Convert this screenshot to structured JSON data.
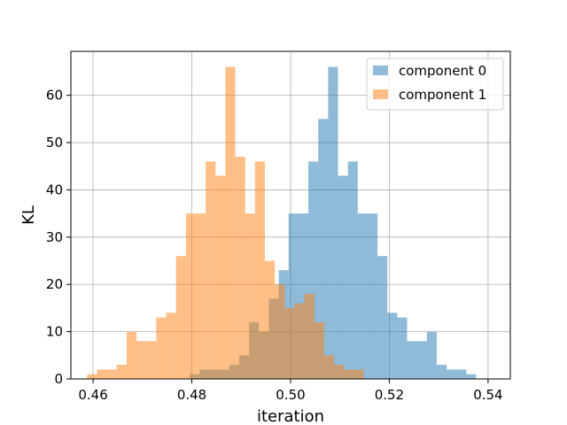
{
  "chart_data": {
    "type": "histogram",
    "xlabel": "iteration",
    "ylabel": "KL",
    "xlim": [
      0.4555,
      0.5445
    ],
    "ylim": [
      0,
      69.3
    ],
    "x_ticks": [
      "0.46",
      "0.48",
      "0.50",
      "0.52",
      "0.54"
    ],
    "y_ticks": [
      "0",
      "10",
      "20",
      "30",
      "40",
      "50",
      "60"
    ],
    "grid": true,
    "legend_position": "top-right",
    "bin_width": 0.002,
    "series": [
      {
        "name": "component 0",
        "color": "#1f77b4",
        "alpha": 0.5,
        "bin_start": 0.4796,
        "counts": [
          1,
          2,
          2,
          2,
          3,
          5,
          12,
          10,
          17,
          23,
          35,
          35,
          46,
          55,
          66,
          43,
          46,
          35,
          35,
          26,
          14,
          13,
          8,
          8,
          10,
          3,
          2,
          2,
          1
        ]
      },
      {
        "name": "component 1",
        "color": "#ff7f0e",
        "alpha": 0.5,
        "bin_start": 0.4588,
        "counts": [
          1,
          2,
          2,
          3,
          10,
          8,
          8,
          13,
          14,
          26,
          35,
          35,
          46,
          43,
          66,
          47,
          35,
          46,
          25,
          20,
          15,
          16,
          18,
          12,
          5,
          3,
          2,
          2
        ]
      }
    ]
  }
}
